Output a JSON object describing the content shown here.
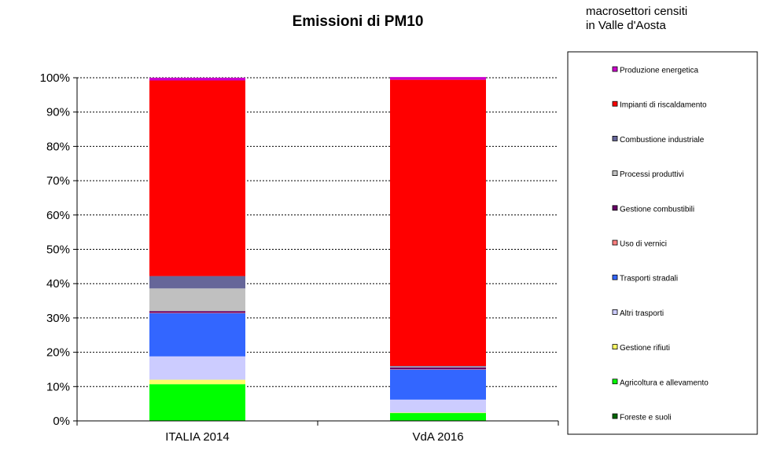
{
  "chart_data": {
    "type": "bar",
    "stacked": true,
    "title": "Emissioni  di PM10",
    "legend_title": [
      "macrosettori censiti",
      "in Valle d'Aosta"
    ],
    "legend_position": "right",
    "categories": [
      "ITALIA 2014",
      "VdA 2016"
    ],
    "ylim": [
      0,
      100
    ],
    "yticks": [
      "0%",
      "10%",
      "20%",
      "30%",
      "40%",
      "50%",
      "60%",
      "70%",
      "80%",
      "90%",
      "100%"
    ],
    "grid": true,
    "xlabel": "",
    "ylabel": "",
    "series": [
      {
        "name": "Foreste e suoli",
        "color": "#006600",
        "values": [
          0.1,
          0.1
        ]
      },
      {
        "name": "Agricoltura e allevamento",
        "color": "#00ff00",
        "values": [
          10.6,
          2.2
        ]
      },
      {
        "name": "Gestione rifiuti",
        "color": "#ffff66",
        "values": [
          1.3,
          0.1
        ]
      },
      {
        "name": "Altri trasporti",
        "color": "#ccccff",
        "values": [
          6.8,
          3.8
        ]
      },
      {
        "name": "Trasporti stradali",
        "color": "#3366ff",
        "values": [
          12.6,
          8.8
        ]
      },
      {
        "name": "Uso di vernici",
        "color": "#ff8080",
        "values": [
          0.1,
          0.1
        ]
      },
      {
        "name": "Gestione combustibili",
        "color": "#660066",
        "values": [
          0.5,
          0.5
        ]
      },
      {
        "name": "Processi produttivi",
        "color": "#c0c0c0",
        "values": [
          6.6,
          0.2
        ]
      },
      {
        "name": "Combustione industriale",
        "color": "#666699",
        "values": [
          3.6,
          0.2
        ]
      },
      {
        "name": "Impianti di riscaldamento",
        "color": "#ff0000",
        "values": [
          57.0,
          83.4
        ]
      },
      {
        "name": "Produzione energetica",
        "color": "#cc00cc",
        "values": [
          0.8,
          0.8
        ]
      }
    ]
  }
}
